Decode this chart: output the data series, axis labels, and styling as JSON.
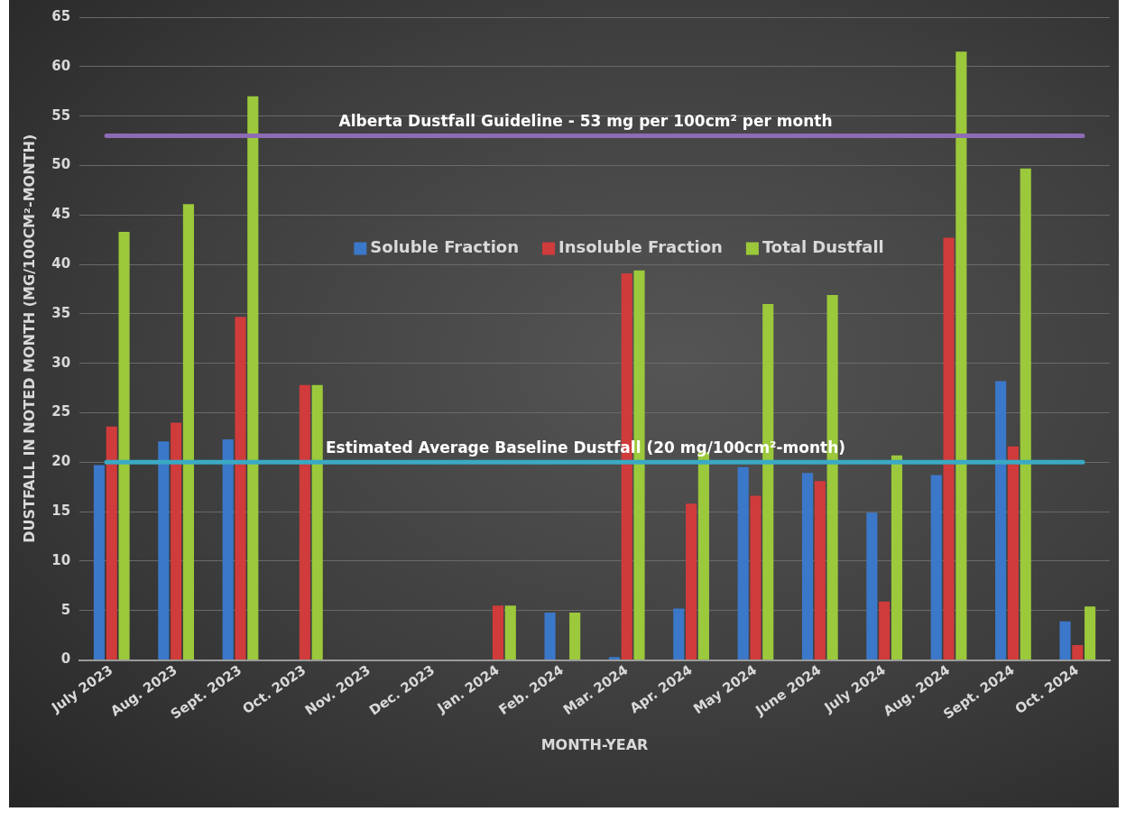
{
  "chart_data": {
    "type": "bar",
    "categories": [
      "July 2023",
      "Aug. 2023",
      "Sept. 2023",
      "Oct. 2023",
      "Nov. 2023",
      "Dec. 2023",
      "Jan. 2024",
      "Feb. 2024",
      "Mar. 2024",
      "Apr. 2024",
      "May 2024",
      "June 2024",
      "July 2024",
      "Aug. 2024",
      "Sept. 2024",
      "Oct. 2024"
    ],
    "series": [
      {
        "name": "Soluble Fraction",
        "color": "#3b78c9",
        "values": [
          19.7,
          22.1,
          22.3,
          null,
          null,
          null,
          null,
          4.8,
          0.3,
          5.2,
          19.5,
          18.9,
          14.9,
          18.7,
          28.2,
          3.9
        ]
      },
      {
        "name": "Insoluble Fraction",
        "color": "#d03b3b",
        "values": [
          23.6,
          24.0,
          34.7,
          27.8,
          null,
          null,
          5.5,
          null,
          39.1,
          15.8,
          16.6,
          18.1,
          5.9,
          42.7,
          21.6,
          1.5
        ]
      },
      {
        "name": "Total Dustfall",
        "color": "#9bc93b",
        "values": [
          43.3,
          46.1,
          57.0,
          27.8,
          null,
          null,
          5.5,
          4.8,
          39.4,
          21.0,
          36.0,
          36.9,
          20.7,
          61.5,
          49.7,
          5.4
        ]
      }
    ],
    "xlabel": "MONTH-YEAR",
    "ylabel": "DUSTFALL IN NOTED MONTH (MG/100CM²-MONTH)",
    "ylim": [
      0,
      65
    ],
    "yticks": [
      0,
      5,
      10,
      15,
      20,
      25,
      30,
      35,
      40,
      45,
      50,
      55,
      60,
      65
    ],
    "grid": "y",
    "legend": "top",
    "ref_lines": [
      {
        "axis": "y",
        "value": 53,
        "label": "Alberta Dustfall Guideline - 53 mg per 100cm² per month",
        "color": "#8e6bb5"
      },
      {
        "axis": "y",
        "value": 20,
        "label": "Estimated Average Baseline Dustfall (20 mg/100cm²-month)",
        "color": "#3aa9c4"
      }
    ]
  }
}
